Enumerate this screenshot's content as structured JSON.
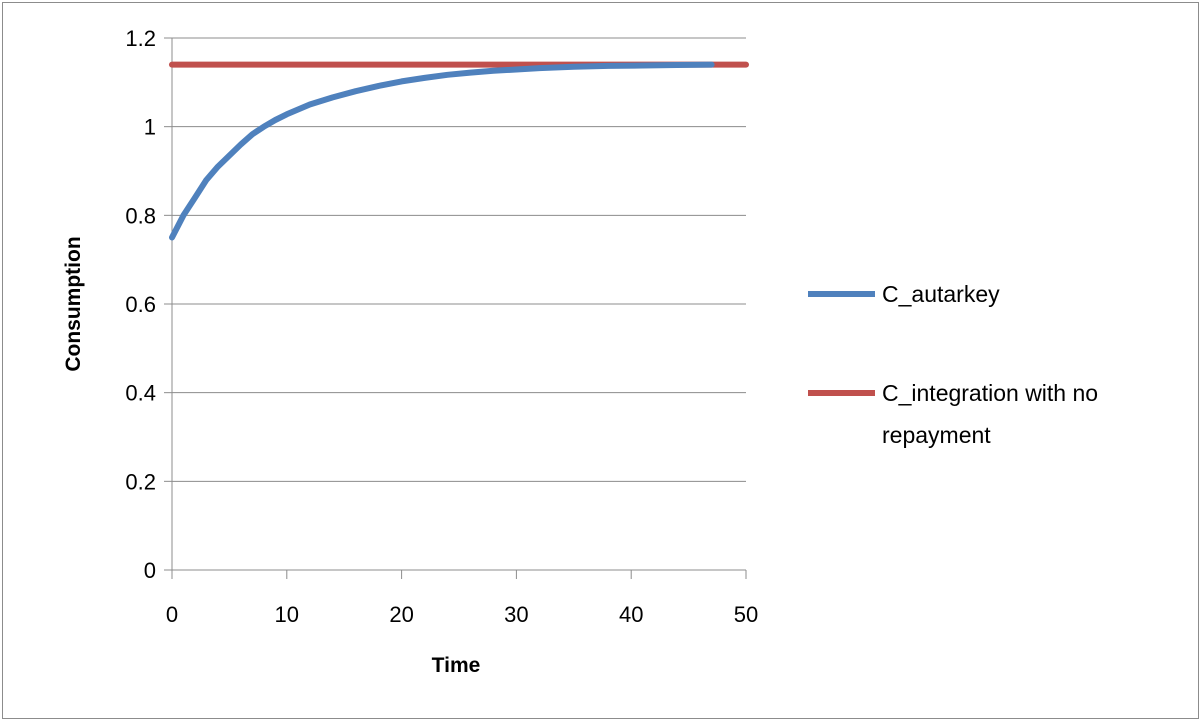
{
  "chart_data": {
    "type": "line",
    "title": "",
    "xlabel": "Time",
    "ylabel": "Consumption",
    "xlim": [
      0,
      50
    ],
    "ylim": [
      0,
      1.2
    ],
    "x_ticks": [
      "0",
      "10",
      "20",
      "30",
      "40",
      "50"
    ],
    "y_ticks": [
      "0",
      "0.2",
      "0.4",
      "0.6",
      "0.8",
      "1",
      "1.2"
    ],
    "grid": "horizontal",
    "legend_position": "right",
    "series": [
      {
        "name": "C_autarkey",
        "color": "#4f81bd",
        "x": [
          0,
          1,
          2,
          3,
          4,
          5,
          6,
          7,
          8,
          9,
          10,
          12,
          14,
          16,
          18,
          20,
          22,
          24,
          26,
          28,
          30,
          32,
          35,
          38,
          41,
          44,
          47
        ],
        "y": [
          0.75,
          0.8,
          0.84,
          0.88,
          0.91,
          0.935,
          0.96,
          0.983,
          1.0,
          1.015,
          1.028,
          1.05,
          1.066,
          1.08,
          1.092,
          1.102,
          1.11,
          1.117,
          1.122,
          1.126,
          1.129,
          1.132,
          1.135,
          1.137,
          1.138,
          1.139,
          1.14
        ]
      },
      {
        "name": "C_integration with no repayment",
        "legend_lines": [
          "C_integration with no",
          "repayment"
        ],
        "color": "#c0504d",
        "x": [
          0,
          50
        ],
        "y": [
          1.14,
          1.14
        ]
      }
    ]
  }
}
